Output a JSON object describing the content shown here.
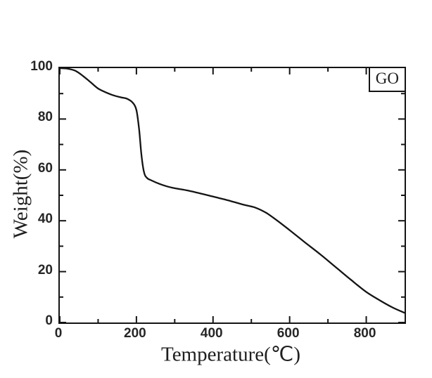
{
  "figure": {
    "legend": {
      "label": "GO"
    },
    "x_axis": {
      "title": "Temperature(℃)",
      "tick_labels": [
        "0",
        "200",
        "400",
        "600",
        "800"
      ],
      "major_ticks": [
        0,
        200,
        400,
        600,
        800
      ],
      "minor_ticks": [
        100,
        300,
        500,
        700
      ],
      "range": [
        0,
        900
      ]
    },
    "y_axis": {
      "title": "Weight(%)",
      "tick_labels": [
        "0",
        "20",
        "40",
        "60",
        "80",
        "100"
      ],
      "major_ticks": [
        0,
        20,
        40,
        60,
        80,
        100
      ],
      "minor_ticks": [
        10,
        30,
        50,
        70,
        90
      ],
      "range": [
        0,
        100
      ]
    },
    "colors": {
      "line": "#141414",
      "axis": "#141414",
      "text": "#1f1f1f"
    }
  },
  "chart_data": {
    "type": "line",
    "title": "",
    "xlabel": "Temperature(℃)",
    "ylabel": "Weight(%)",
    "xlim": [
      0,
      900
    ],
    "ylim": [
      0,
      100
    ],
    "grid": false,
    "legend_position": "top-right",
    "series": [
      {
        "name": "GO",
        "x": [
          0,
          20,
          40,
          60,
          80,
          100,
          120,
          140,
          160,
          175,
          190,
          200,
          207,
          213,
          220,
          228,
          240,
          260,
          280,
          300,
          330,
          360,
          400,
          440,
          480,
          510,
          540,
          570,
          600,
          640,
          680,
          720,
          760,
          800,
          840,
          870,
          900
        ],
        "y": [
          100,
          99.8,
          99,
          97,
          94.5,
          92,
          90.5,
          89.3,
          88.5,
          88,
          86.5,
          83.5,
          76,
          66,
          59,
          56.8,
          55.8,
          54.5,
          53.5,
          52.8,
          52,
          51,
          49.5,
          48,
          46.3,
          45.2,
          43,
          39.8,
          36.3,
          31.5,
          26.8,
          21.8,
          16.8,
          12,
          8.3,
          5.8,
          3.8
        ]
      }
    ]
  }
}
